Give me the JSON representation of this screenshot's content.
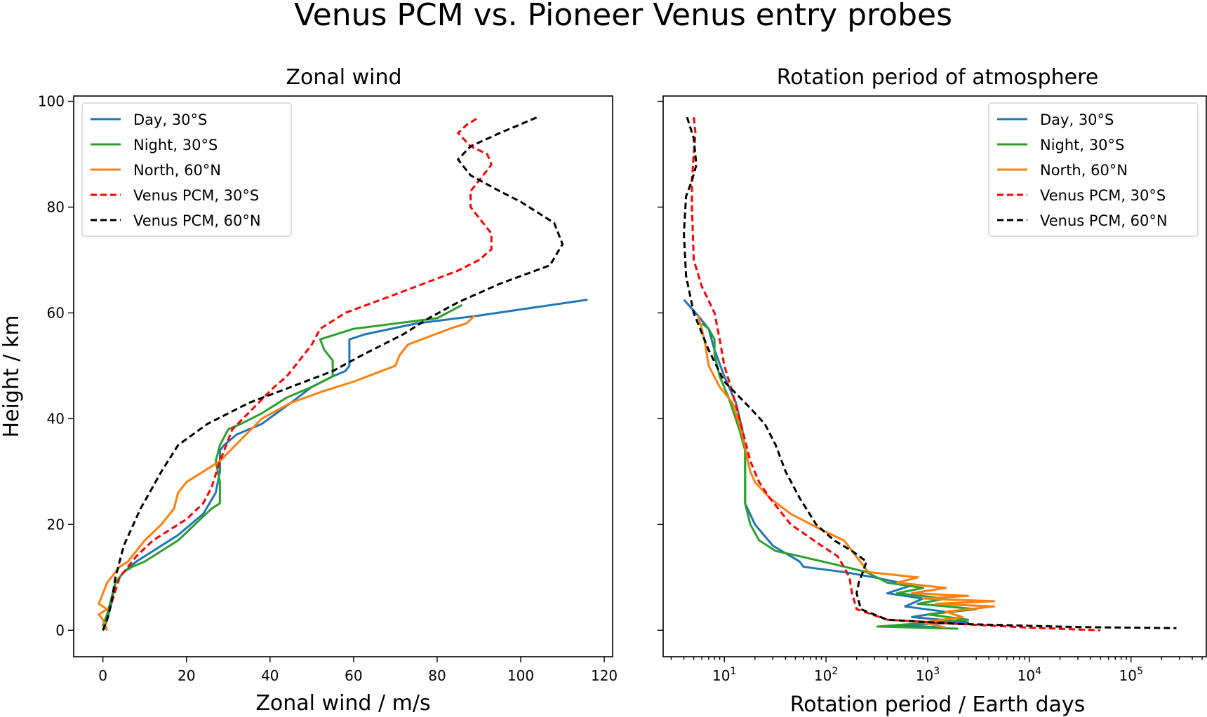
{
  "figure": {
    "title": "Venus PCM vs. Pioneer Venus entry probes"
  },
  "colors": {
    "day": "#1f77b4",
    "night": "#2ca02c",
    "north": "#ff7f0e",
    "pcm30s": "#ff0000",
    "pcm60n": "#000000"
  },
  "chart_data": [
    {
      "type": "line",
      "title": "Zonal wind",
      "xlabel": "Zonal wind / m/s",
      "ylabel": "Height / km",
      "xscale": "linear",
      "xlim": [
        -7,
        122
      ],
      "ylim": [
        -5,
        101
      ],
      "xticks": [
        0,
        20,
        40,
        60,
        80,
        100,
        120
      ],
      "yticks": [
        0,
        20,
        40,
        60,
        80,
        100
      ],
      "xticklabels": [
        "0",
        "20",
        "40",
        "60",
        "80",
        "100",
        "120"
      ],
      "yticklabels": [
        "0",
        "20",
        "40",
        "60",
        "80",
        "100"
      ],
      "legend_position": "upper-left",
      "series": [
        {
          "name": "Day, 30°S",
          "key": "day",
          "style": "solid",
          "x": [
            0,
            1,
            2,
            3,
            5,
            8,
            12,
            18,
            24,
            27,
            28,
            28,
            28,
            29,
            32,
            38,
            45,
            50,
            55,
            58,
            59,
            59,
            63,
            75,
            90,
            116
          ],
          "y": [
            0,
            2,
            5,
            9,
            11,
            13,
            15,
            18,
            22,
            26,
            30,
            32,
            34,
            35,
            37,
            39,
            43,
            46,
            48,
            49,
            50,
            55,
            56,
            58,
            59.5,
            62.5
          ]
        },
        {
          "name": "Night, 30°S",
          "key": "night",
          "style": "solid",
          "x": [
            1,
            0,
            1,
            2,
            3,
            5,
            7,
            10,
            14,
            18,
            22,
            26,
            28,
            28,
            27,
            28,
            30,
            33,
            38,
            44,
            50,
            55,
            55,
            53,
            52,
            60,
            80,
            86
          ],
          "y": [
            0,
            1,
            3,
            6,
            9,
            11,
            12,
            13,
            15,
            17,
            20,
            23,
            24,
            28,
            32,
            35,
            38,
            39,
            41,
            44,
            46,
            48,
            51,
            53,
            55,
            57,
            59,
            61.5
          ]
        },
        {
          "name": "North, 60°N",
          "key": "north",
          "style": "solid",
          "x": [
            1,
            0,
            -1,
            1,
            -1,
            0,
            1,
            2,
            4,
            6,
            8,
            10,
            14,
            17,
            18,
            20,
            24,
            26,
            28,
            33,
            38,
            45,
            52,
            60,
            65,
            70,
            71,
            73,
            83,
            87,
            89
          ],
          "y": [
            0,
            2,
            3,
            4,
            5,
            7,
            9,
            10,
            12,
            13,
            15,
            17,
            20,
            23,
            26,
            28,
            30,
            31,
            32,
            36,
            40,
            43,
            45,
            47,
            48.5,
            50,
            52,
            54,
            57,
            58,
            59.5
          ]
        },
        {
          "name": "Venus PCM, 30°S",
          "key": "pcm30s",
          "style": "dashed",
          "x": [
            0,
            1,
            2,
            4,
            8,
            12,
            16,
            20,
            24,
            26,
            28,
            31,
            36,
            41,
            44,
            47,
            50,
            52,
            58,
            70,
            85,
            90,
            93,
            93,
            90,
            88,
            88,
            91,
            93,
            92,
            88,
            85,
            87,
            90
          ],
          "y": [
            0,
            2,
            5,
            10,
            14,
            17,
            19,
            21,
            24,
            27,
            32,
            38,
            42,
            46,
            48,
            51,
            54,
            57,
            60,
            63.5,
            68,
            70,
            72,
            75,
            78,
            80,
            83,
            86,
            88,
            90,
            91.5,
            94,
            95.5,
            97
          ]
        },
        {
          "name": "Venus PCM, 60°N",
          "key": "pcm60n",
          "style": "dashed",
          "x": [
            0,
            1,
            2,
            3,
            5,
            9,
            14,
            18,
            25,
            35,
            45,
            55,
            62,
            72,
            78,
            85,
            95,
            107,
            110,
            108,
            100,
            95,
            88,
            85,
            88,
            95,
            104
          ],
          "y": [
            0,
            2,
            5,
            10,
            16,
            23,
            30,
            35,
            39,
            43,
            46,
            49,
            52,
            56,
            59,
            62,
            65.5,
            69,
            73,
            77,
            81,
            83,
            86,
            89,
            91.5,
            94,
            97
          ]
        }
      ]
    },
    {
      "type": "line",
      "title": "Rotation period of atmosphere",
      "xlabel": "Rotation period / Earth days",
      "ylabel": "",
      "xscale": "log",
      "xlim": [
        2.5,
        550000
      ],
      "ylim": [
        -5,
        101
      ],
      "xticks": [
        10,
        100,
        1000,
        10000,
        100000
      ],
      "xticklabels": [
        [
          "10",
          "1"
        ],
        [
          "10",
          "2"
        ],
        [
          "10",
          "3"
        ],
        [
          "10",
          "4"
        ],
        [
          "10",
          "5"
        ]
      ],
      "yticks": [
        0,
        20,
        40,
        60,
        80,
        100
      ],
      "legend_position": "upper-right",
      "series": [
        {
          "name": "Day, 30°S",
          "key": "day",
          "style": "solid",
          "x": [
            4,
            5.5,
            7,
            8,
            10,
            13,
            15,
            16,
            16,
            16,
            20,
            30,
            55,
            60,
            150,
            300,
            700,
            400,
            900,
            600,
            1500,
            700,
            2500,
            500,
            1500
          ],
          "y": [
            62.5,
            59.5,
            57,
            53,
            48,
            43,
            38,
            34,
            30,
            24,
            20,
            16,
            13,
            12,
            11,
            10,
            8.5,
            7,
            6,
            4.5,
            3.5,
            2.5,
            1.5,
            1,
            0.5
          ]
        },
        {
          "name": "Night, 30°S",
          "key": "night",
          "style": "solid",
          "x": [
            6,
            7,
            8,
            8,
            9,
            11,
            14,
            16,
            16,
            16,
            18,
            22,
            32,
            55,
            120,
            250,
            400,
            900,
            500,
            1500,
            800,
            3000,
            1000,
            2500,
            320,
            2000
          ],
          "y": [
            58,
            57,
            55,
            52,
            48,
            44,
            38,
            34,
            30,
            24,
            20,
            17,
            15,
            14,
            12.5,
            11,
            9,
            8,
            7,
            6,
            5,
            4,
            3,
            2,
            0.7,
            0.3
          ]
        },
        {
          "name": "North, 60°N",
          "key": "north",
          "style": "solid",
          "x": [
            5.5,
            6,
            6.5,
            7,
            9,
            12,
            14,
            16,
            17,
            18,
            20,
            28,
            45,
            90,
            150,
            260,
            800,
            500,
            1500,
            700,
            2500,
            900,
            4500,
            1200,
            4500,
            1500,
            2200,
            900,
            1500
          ],
          "y": [
            59.5,
            57,
            54,
            50,
            46,
            43,
            39,
            35,
            32,
            30,
            28,
            25,
            22,
            19,
            17,
            11,
            10,
            9,
            8,
            7,
            6.5,
            6,
            5.5,
            5,
            4.5,
            3.5,
            2.5,
            1.5,
            0.5
          ]
        },
        {
          "name": "Venus PCM, 30°S",
          "key": "pcm30s",
          "style": "dashed",
          "x": [
            5,
            5.2,
            5,
            4.8,
            4.8,
            5,
            6,
            8,
            9,
            10,
            12,
            15,
            18,
            22,
            28,
            45,
            90,
            130,
            150,
            170,
            180,
            200,
            400,
            2000,
            10000,
            50000
          ],
          "y": [
            97,
            94,
            90,
            85,
            80,
            70,
            65,
            60,
            55,
            50,
            45,
            38,
            32,
            28,
            25,
            20,
            16,
            14,
            12,
            10,
            7,
            4,
            2,
            1.2,
            0.5,
            0
          ]
        },
        {
          "name": "Venus PCM, 60°N",
          "key": "pcm60n",
          "style": "dashed",
          "x": [
            4.3,
            5,
            5.3,
            4.8,
            4.2,
            4,
            4.2,
            5,
            7,
            10,
            18,
            25,
            32,
            40,
            55,
            80,
            120,
            180,
            250,
            230,
            210,
            200,
            220,
            400,
            2000,
            30000,
            280000
          ],
          "y": [
            97,
            93,
            88,
            85,
            82,
            75,
            67,
            60,
            53,
            47,
            42,
            39,
            35,
            30,
            25,
            20,
            17,
            15,
            13,
            11,
            9,
            7,
            4,
            2,
            1.2,
            0.6,
            0.4
          ]
        }
      ]
    }
  ]
}
